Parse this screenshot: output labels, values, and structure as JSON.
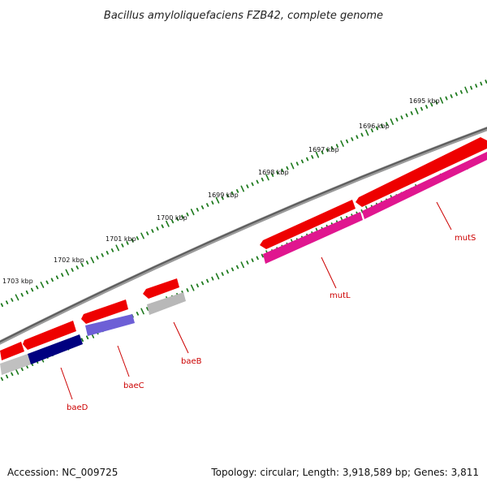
{
  "title": "Bacillus amyloliquefaciens FZB42, complete genome",
  "footer": {
    "accession": "Accession: NC_009725",
    "topology": "Topology: circular; Length: 3,918,589 bp; Genes: 3,811"
  },
  "scale": {
    "labels": [
      "1695 kbp",
      "1696 kbp",
      "1697 kbp",
      "1698 kbp",
      "1699 kbp",
      "1700 kbp",
      "1701 kbp",
      "1702 kbp",
      "1703 kbp"
    ],
    "tick_color": "#1e7a1e"
  },
  "backbone": {
    "color": "#777777"
  },
  "genes": [
    {
      "name": "mutS",
      "strand": "forward",
      "color": "#ee0000",
      "rna_color": "#e0168f"
    },
    {
      "name": "mutL",
      "strand": "forward",
      "color": "#ee0000",
      "rna_color": "#e0168f"
    },
    {
      "name": "baeB",
      "strand": "reverse",
      "color": "#ee0000",
      "rna_color": "#b8b8b8"
    },
    {
      "name": "baeC",
      "strand": "reverse",
      "color": "#ee0000",
      "rna_color": "#6d5fd6"
    },
    {
      "name": "baeD",
      "strand": "reverse",
      "color": "#ee0000",
      "rna_color": "#000080"
    }
  ],
  "label_color": "#cc0000"
}
